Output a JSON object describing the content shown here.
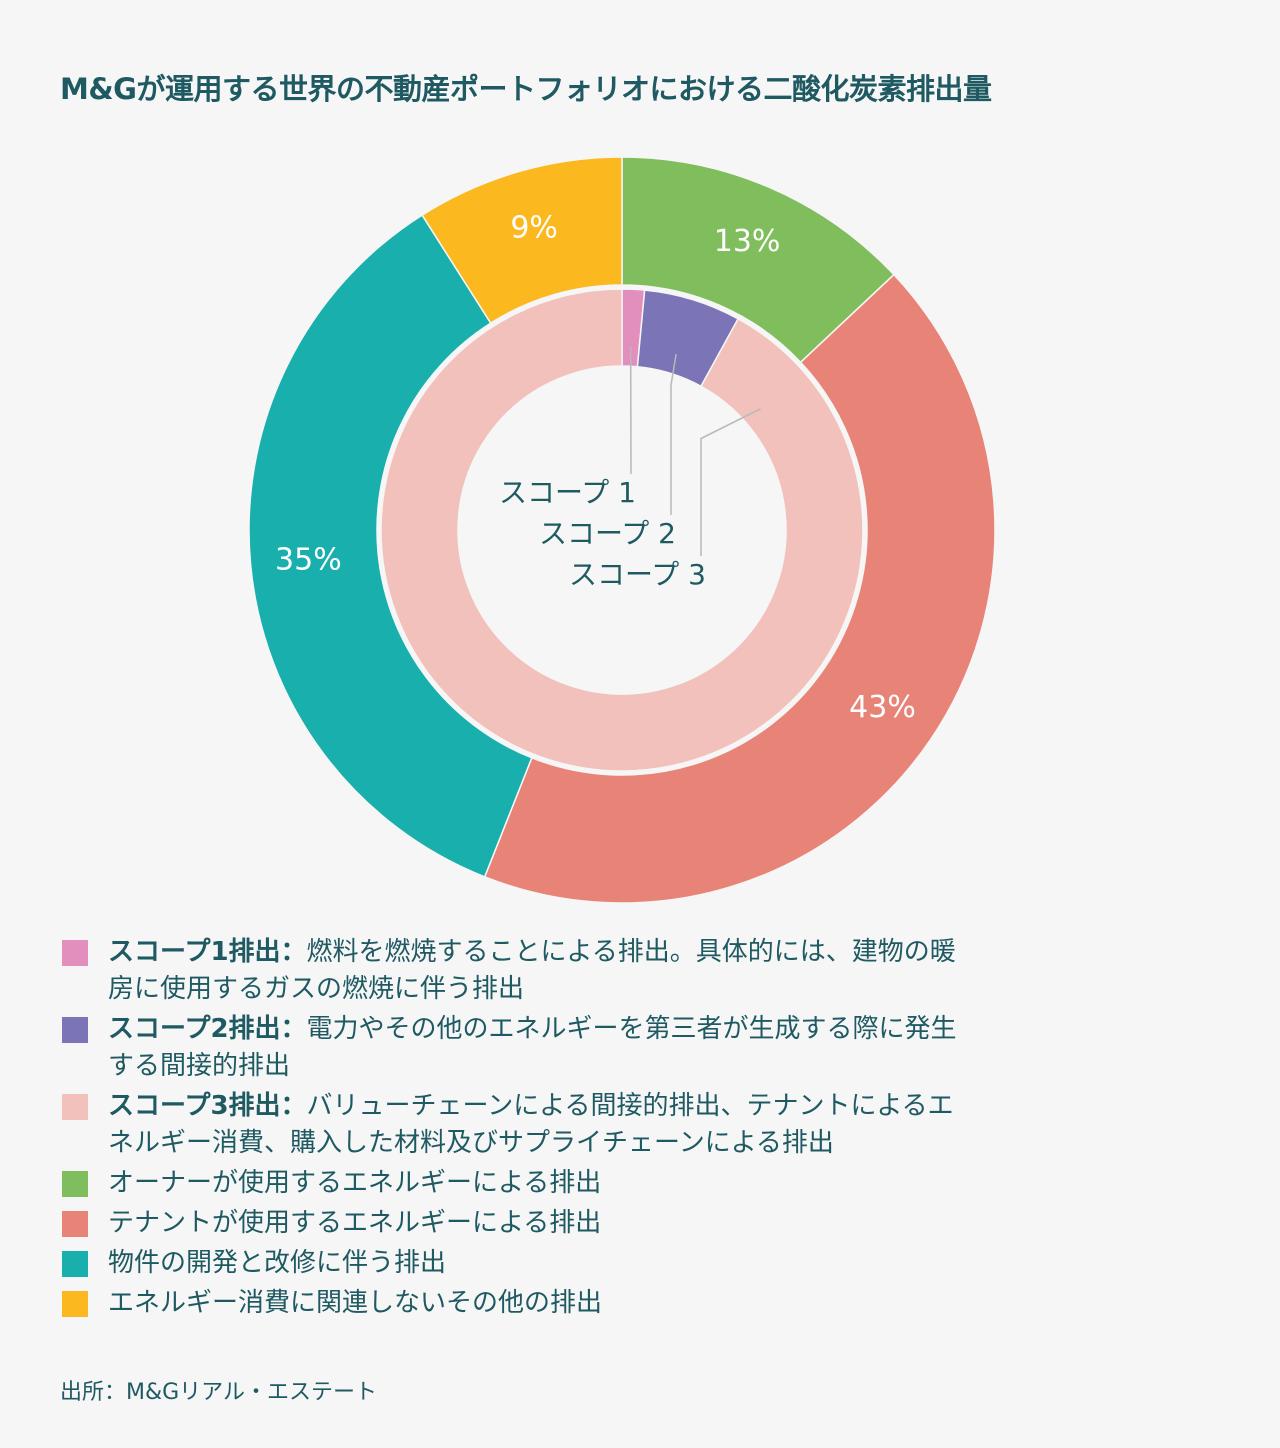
{
  "title": "M&Gが運用する世界の不動産ポートフォリオにおける二酸化炭素排出量",
  "chart_data": {
    "type": "donut",
    "inner_ring": {
      "series": [
        {
          "name": "スコープ 1",
          "value": 1.5,
          "color": "#e28fbe"
        },
        {
          "name": "スコープ 2",
          "value": 6.5,
          "color": "#7b74b6"
        },
        {
          "name": "スコープ 3",
          "value": 92,
          "color": "#f2c1bb"
        }
      ]
    },
    "outer_ring": {
      "series": [
        {
          "label": "13%",
          "value": 13,
          "color": "#80bd5c"
        },
        {
          "label": "43%",
          "value": 43,
          "color": "#e88377"
        },
        {
          "label": "35%",
          "value": 35,
          "color": "#19afad"
        },
        {
          "label": "9%",
          "value": 9,
          "color": "#fbb81f"
        }
      ]
    }
  },
  "legend": [
    {
      "color": "#e28fbe",
      "name": "スコープ1排出：",
      "text": "燃料を燃焼することによる排出。具体的には、建物の暖房に使用するガスの燃焼に伴う排出"
    },
    {
      "color": "#7b74b6",
      "name": "スコープ2排出：",
      "text": "電力やその他のエネルギーを第三者が生成する際に発生する間接的排出"
    },
    {
      "color": "#f2c1bb",
      "name": "スコープ3排出：",
      "text": "バリューチェーンによる間接的排出、テナントによるエネルギー消費、購入した材料及びサプライチェーンによる排出"
    },
    {
      "color": "#80bd5c",
      "name": "",
      "text": "オーナーが使用するエネルギーによる排出"
    },
    {
      "color": "#e88377",
      "name": "",
      "text": "テナントが使用するエネルギーによる排出"
    },
    {
      "color": "#19afad",
      "name": "",
      "text": "物件の開発と改修に伴う排出"
    },
    {
      "color": "#fbb81f",
      "name": "",
      "text": "エネルギー消費に関連しないその他の排出"
    }
  ],
  "source": "出所：M&Gリアル・エステート"
}
